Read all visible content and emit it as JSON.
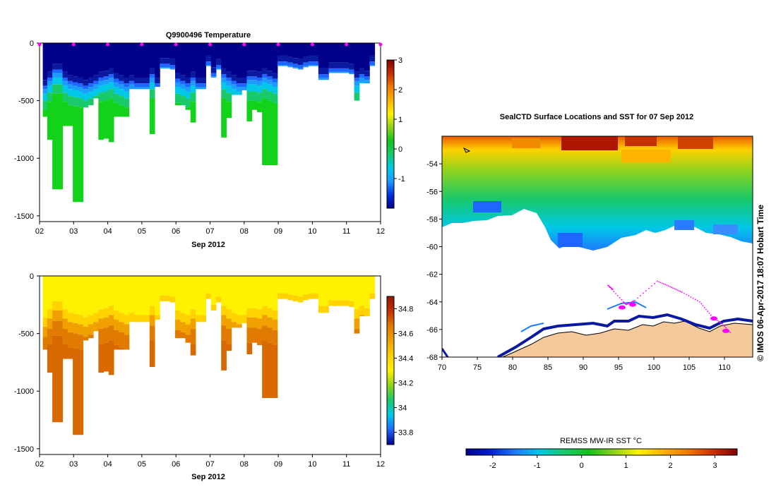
{
  "colors": {
    "ramp": [
      "#00008b",
      "#0020d0",
      "#1e7bff",
      "#00c8e6",
      "#19c96a",
      "#12c31a",
      "#8fd21c",
      "#fff200",
      "#ffb000",
      "#f07800",
      "#d03000",
      "#7f0000"
    ],
    "land": "#f6c99c",
    "marker": "#ff00ff",
    "axis": "#000000"
  },
  "chart_data": [
    {
      "id": "temperature_section",
      "type": "heatmap",
      "title": "Q9900496  Temperature",
      "xlabel": "Sep 2012",
      "ylabel": "",
      "x_ticks": [
        "02",
        "03",
        "04",
        "05",
        "06",
        "07",
        "08",
        "09",
        "10",
        "11",
        "12"
      ],
      "x_range": [
        2,
        12
      ],
      "y_ticks": [
        "0",
        "-500",
        "-1000",
        "-1500"
      ],
      "y_range": [
        -1550,
        0
      ],
      "colorbar": {
        "min": -2,
        "max": 3,
        "ticks": [
          "3",
          "2",
          "1",
          "0",
          "-1"
        ]
      },
      "profile_day_markers": [
        2,
        3,
        4,
        5,
        6,
        7,
        8,
        9,
        10,
        11,
        12
      ],
      "profiles": [
        {
          "x": 2.17,
          "depth": 640,
          "tc": 400
        },
        {
          "x": 2.3,
          "depth": 840,
          "tc": 330
        },
        {
          "x": 2.45,
          "depth": 1270,
          "tc": 260
        },
        {
          "x": 2.6,
          "depth": 1270,
          "tc": 260
        },
        {
          "x": 2.75,
          "depth": 720,
          "tc": 330
        },
        {
          "x": 2.9,
          "depth": 720,
          "tc": 360
        },
        {
          "x": 3.05,
          "depth": 1380,
          "tc": 370
        },
        {
          "x": 3.2,
          "depth": 1380,
          "tc": 380
        },
        {
          "x": 3.35,
          "depth": 560,
          "tc": 400
        },
        {
          "x": 3.5,
          "depth": 540,
          "tc": 380
        },
        {
          "x": 3.65,
          "depth": 480,
          "tc": 360
        },
        {
          "x": 3.8,
          "depth": 840,
          "tc": 330
        },
        {
          "x": 3.95,
          "depth": 830,
          "tc": 320
        },
        {
          "x": 4.1,
          "depth": 860,
          "tc": 300
        },
        {
          "x": 4.25,
          "depth": 640,
          "tc": 340
        },
        {
          "x": 4.4,
          "depth": 640,
          "tc": 360
        },
        {
          "x": 4.55,
          "depth": 640,
          "tc": 380
        },
        {
          "x": 4.7,
          "depth": 400,
          "tc": 360
        },
        {
          "x": 4.85,
          "depth": 400,
          "tc": 380
        },
        {
          "x": 5.0,
          "depth": 400,
          "tc": 380
        },
        {
          "x": 5.15,
          "depth": 400,
          "tc": 380
        },
        {
          "x": 5.3,
          "depth": 790,
          "tc": 300
        },
        {
          "x": 5.45,
          "depth": 380,
          "tc": 380
        },
        {
          "x": 5.6,
          "depth": 220,
          "tc": 210
        },
        {
          "x": 5.75,
          "depth": 220,
          "tc": 210
        },
        {
          "x": 5.9,
          "depth": 230,
          "tc": 220
        },
        {
          "x": 6.05,
          "depth": 540,
          "tc": 340
        },
        {
          "x": 6.2,
          "depth": 540,
          "tc": 360
        },
        {
          "x": 6.35,
          "depth": 580,
          "tc": 380
        },
        {
          "x": 6.5,
          "depth": 690,
          "tc": 330
        },
        {
          "x": 6.65,
          "depth": 400,
          "tc": 380
        },
        {
          "x": 6.8,
          "depth": 400,
          "tc": 380
        },
        {
          "x": 6.95,
          "depth": 200,
          "tc": 190
        },
        {
          "x": 7.1,
          "depth": 300,
          "tc": 290
        },
        {
          "x": 7.25,
          "depth": 230,
          "tc": 220
        },
        {
          "x": 7.4,
          "depth": 820,
          "tc": 300
        },
        {
          "x": 7.55,
          "depth": 650,
          "tc": 330
        },
        {
          "x": 7.7,
          "depth": 450,
          "tc": 360
        },
        {
          "x": 7.85,
          "depth": 450,
          "tc": 380
        },
        {
          "x": 8.0,
          "depth": 410,
          "tc": 380
        },
        {
          "x": 8.15,
          "depth": 680,
          "tc": 320
        },
        {
          "x": 8.3,
          "depth": 580,
          "tc": 320
        },
        {
          "x": 8.45,
          "depth": 600,
          "tc": 330
        },
        {
          "x": 8.6,
          "depth": 1060,
          "tc": 300
        },
        {
          "x": 8.75,
          "depth": 1060,
          "tc": 320
        },
        {
          "x": 8.9,
          "depth": 1060,
          "tc": 340
        },
        {
          "x": 9.05,
          "depth": 200,
          "tc": 190
        },
        {
          "x": 9.2,
          "depth": 200,
          "tc": 190
        },
        {
          "x": 9.35,
          "depth": 210,
          "tc": 200
        },
        {
          "x": 9.5,
          "depth": 220,
          "tc": 210
        },
        {
          "x": 9.65,
          "depth": 230,
          "tc": 220
        },
        {
          "x": 9.8,
          "depth": 210,
          "tc": 200
        },
        {
          "x": 9.95,
          "depth": 200,
          "tc": 190
        },
        {
          "x": 10.1,
          "depth": 200,
          "tc": 190
        },
        {
          "x": 10.25,
          "depth": 320,
          "tc": 300
        },
        {
          "x": 10.4,
          "depth": 320,
          "tc": 300
        },
        {
          "x": 10.55,
          "depth": 260,
          "tc": 250
        },
        {
          "x": 10.7,
          "depth": 260,
          "tc": 250
        },
        {
          "x": 10.85,
          "depth": 260,
          "tc": 250
        },
        {
          "x": 11.0,
          "depth": 260,
          "tc": 250
        },
        {
          "x": 11.15,
          "depth": 270,
          "tc": 260
        },
        {
          "x": 11.3,
          "depth": 500,
          "tc": 330
        },
        {
          "x": 11.45,
          "depth": 350,
          "tc": 300
        },
        {
          "x": 11.6,
          "depth": 350,
          "tc": 320
        },
        {
          "x": 11.75,
          "depth": 200,
          "tc": 190
        }
      ]
    },
    {
      "id": "salinity_section",
      "type": "heatmap",
      "title": "",
      "xlabel": "Sep 2012",
      "ylabel": "",
      "x_ticks": [
        "02",
        "03",
        "04",
        "05",
        "06",
        "07",
        "08",
        "09",
        "10",
        "11",
        "12"
      ],
      "x_range": [
        2,
        12
      ],
      "y_ticks": [
        "0",
        "-500",
        "-1000",
        "-1500"
      ],
      "y_range": [
        -1550,
        0
      ],
      "colorbar": {
        "min": 33.7,
        "max": 34.9,
        "ticks": [
          "34.8",
          "34.6",
          "34.4",
          "34.2",
          "34",
          "33.8"
        ]
      },
      "note": "same profile columns and depths as the temperature section"
    },
    {
      "id": "sst_map",
      "type": "heatmap",
      "title": "SealCTD Surface Locations and SST for 07 Sep 2012",
      "xlabel": "",
      "ylabel": "",
      "lon_range": [
        70,
        114
      ],
      "lat_range": [
        -68,
        -52
      ],
      "x_ticks": [
        "70",
        "75",
        "80",
        "85",
        "90",
        "95",
        "100",
        "105",
        "110"
      ],
      "y_ticks": [
        "-54",
        "-56",
        "-58",
        "-60",
        "-62",
        "-64",
        "-66",
        "-68"
      ],
      "side_label": "© IMOS 06-Apr-2017 18:07 Hobart Time",
      "colorbar": {
        "label": "REMSS MW-IR SST °C",
        "min": -2.6,
        "max": 3.5,
        "ticks": [
          "-2",
          "-1",
          "0",
          "1",
          "2",
          "3"
        ]
      },
      "track_points": [
        [
          94.2,
          -63.1
        ],
        [
          93.5,
          -62.8
        ],
        [
          95.7,
          -64.0
        ],
        [
          96.1,
          -64.2
        ],
        [
          97.3,
          -63.9
        ],
        [
          100.5,
          -62.5
        ],
        [
          102.3,
          -62.9
        ],
        [
          104.0,
          -63.3
        ],
        [
          106.5,
          -64.0
        ],
        [
          108.3,
          -65.1
        ],
        [
          109.7,
          -65.6
        ],
        [
          111.0,
          -66.3
        ]
      ],
      "dense_clusters": [
        [
          95.5,
          -64.4
        ],
        [
          97.0,
          -64.2
        ],
        [
          108.5,
          -65.2
        ],
        [
          110.2,
          -66.1
        ]
      ]
    }
  ]
}
